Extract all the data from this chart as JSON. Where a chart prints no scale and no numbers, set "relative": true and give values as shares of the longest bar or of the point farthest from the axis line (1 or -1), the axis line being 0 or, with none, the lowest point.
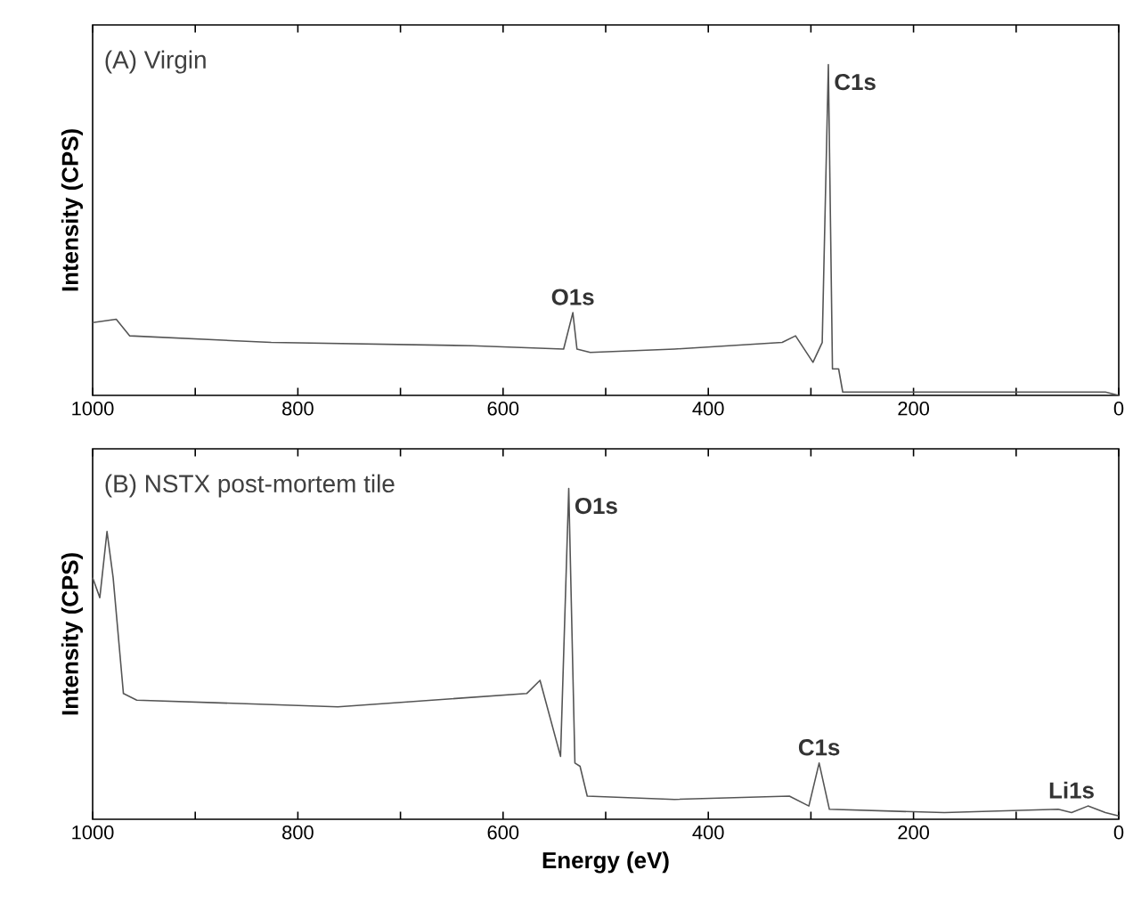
{
  "chart_data": [
    {
      "type": "line",
      "title": "(A) Virgin",
      "ylabel": "Intensity (CPS)",
      "relative": true,
      "xlim": [
        1000,
        0
      ],
      "xticks": [
        1000,
        {
          "value": 900,
          "label": null
        },
        800,
        {
          "value": 700,
          "label": null
        },
        600,
        {
          "value": 500,
          "label": null
        },
        400,
        {
          "value": 300,
          "label": null
        },
        200,
        {
          "value": 100,
          "label": null
        },
        0
      ],
      "tick_labels": "x",
      "series": [
        {
          "color": "#555555",
          "x": [
            1000,
            977,
            964,
            826,
            630,
            541,
            532,
            528,
            515,
            433,
            328,
            315,
            298,
            289,
            283,
            279,
            273,
            269,
            170,
            13,
            0
          ],
          "values": [
            0.22,
            0.23,
            0.18,
            0.16,
            0.15,
            0.14,
            0.25,
            0.14,
            0.13,
            0.14,
            0.16,
            0.18,
            0.1,
            0.16,
            1.0,
            0.08,
            0.08,
            0.01,
            0.01,
            0.01,
            0
          ]
        }
      ],
      "annotations": [
        {
          "text": "O1s",
          "x": 532,
          "y": 0.25
        },
        {
          "text": "C1s",
          "x": 283,
          "y": 1.0
        }
      ]
    },
    {
      "type": "line",
      "title": "(B) NSTX post-mortem tile",
      "xlabel": "Energy (eV)",
      "ylabel": "Intensity (CPS)",
      "relative": true,
      "xlim": [
        1000,
        0
      ],
      "xticks": [
        1000,
        {
          "value": 900,
          "label": null
        },
        800,
        {
          "value": 700,
          "label": null
        },
        600,
        {
          "value": 500,
          "label": null
        },
        400,
        {
          "value": 300,
          "label": null
        },
        200,
        {
          "value": 100,
          "label": null
        },
        0
      ],
      "tick_labels": "x",
      "series": [
        {
          "color": "#555555",
          "x": [
            1000,
            993,
            986,
            980,
            970,
            957,
            761,
            577,
            564,
            544,
            536,
            530,
            525,
            518,
            433,
            321,
            302,
            292,
            282,
            170,
            59,
            46,
            30,
            13,
            0
          ],
          "values": [
            0.73,
            0.67,
            0.87,
            0.73,
            0.38,
            0.36,
            0.34,
            0.38,
            0.42,
            0.19,
            1.0,
            0.17,
            0.16,
            0.07,
            0.06,
            0.07,
            0.04,
            0.17,
            0.03,
            0.02,
            0.03,
            0.02,
            0.04,
            0.02,
            0.01
          ]
        }
      ],
      "annotations": [
        {
          "text": "O1s",
          "x": 536,
          "y": 1.0
        },
        {
          "text": "C1s",
          "x": 292,
          "y": 0.17
        },
        {
          "text": "Li1s",
          "x": 46,
          "y": 0.04
        }
      ]
    }
  ]
}
